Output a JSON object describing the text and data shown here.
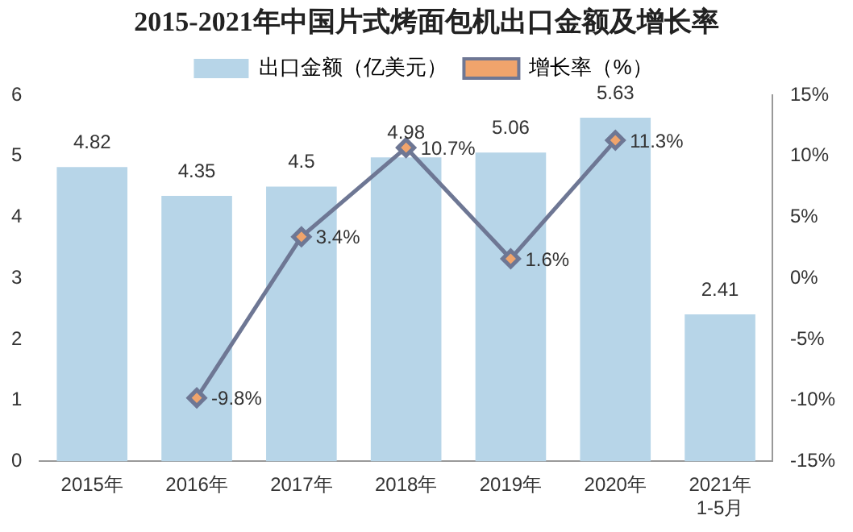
{
  "chart_data": {
    "type": "bar",
    "title": "2015-2021年中国片式烤面包机出口金额及增长率",
    "categories": [
      "2015年",
      "2016年",
      "2017年",
      "2018年",
      "2019年",
      "2020年",
      "2021年\n1-5月"
    ],
    "series": [
      {
        "name": "出口金额（亿美元）",
        "color": "#b7d5e8",
        "values": [
          4.82,
          4.35,
          4.5,
          4.98,
          5.06,
          5.63,
          2.41
        ],
        "value_labels": [
          "4.82",
          "4.35",
          "4.5",
          "4.98",
          "5.06",
          "5.63",
          "2.41"
        ]
      },
      {
        "name": "增长率（%）",
        "type": "line",
        "axis": "y2",
        "color": "#6e7794",
        "marker": "diamond",
        "values": [
          null,
          -9.8,
          3.4,
          10.7,
          1.6,
          11.3,
          null
        ],
        "value_labels": [
          null,
          "-9.8%",
          "3.4%",
          "10.7%",
          "1.6%",
          "11.3%",
          null
        ]
      }
    ],
    "ylim": [
      0,
      6
    ],
    "yticks": [
      0,
      1,
      2,
      3,
      4,
      5,
      6
    ],
    "y2lim": [
      -15,
      15
    ],
    "y2ticks": [
      {
        "value": -15,
        "label": "-15%"
      },
      {
        "value": -10,
        "label": "-10%"
      },
      {
        "value": -5,
        "label": "-5%"
      },
      {
        "value": 0,
        "label": "0%"
      },
      {
        "value": 5,
        "label": "5%"
      },
      {
        "value": 10,
        "label": "10%"
      },
      {
        "value": 15,
        "label": "15%"
      }
    ],
    "grid": false,
    "legend": "top"
  }
}
